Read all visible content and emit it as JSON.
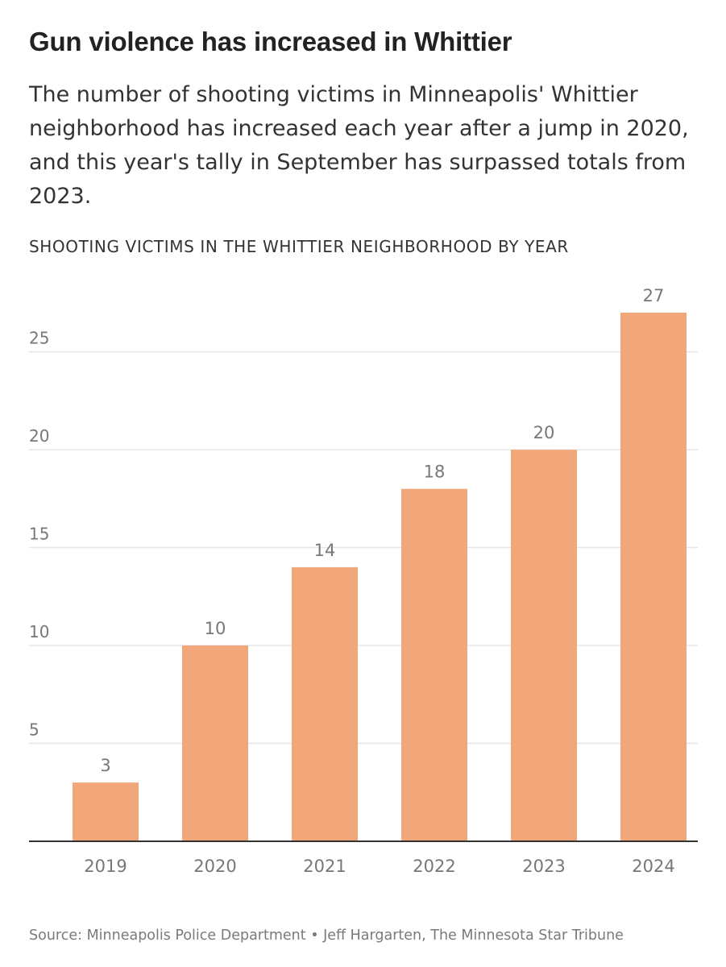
{
  "headline": "Gun violence has increased in Whittier",
  "subhead": "The number of shooting victims in Minneapolis' Whittier neighborhood has increased each year after a jump in 2020, and this year's tally in September has surpassed totals from 2023.",
  "chart_label": "SHOOTING VICTIMS IN THE WHITTIER NEIGHBORHOOD BY YEAR",
  "source": "Source: Minneapolis Police Department • Jeff Hargarten, The Minnesota Star Tribune",
  "colors": {
    "bar": "#f2a77b",
    "grid": "#e6e6e6",
    "axis": "#333333",
    "tick_text": "#777777",
    "value_text": "#777777"
  },
  "chart_data": {
    "type": "bar",
    "title": "SHOOTING VICTIMS IN THE WHITTIER NEIGHBORHOOD BY YEAR",
    "xlabel": "",
    "ylabel": "",
    "categories": [
      "2019",
      "2020",
      "2021",
      "2022",
      "2023",
      "2024"
    ],
    "values": [
      3,
      10,
      14,
      18,
      20,
      27
    ],
    "data_labels": [
      "3",
      "10",
      "14",
      "18",
      "20",
      "27"
    ],
    "yticks": [
      5,
      10,
      15,
      20,
      25
    ],
    "ylim": [
      0,
      27
    ],
    "grid": true,
    "legend": "none"
  }
}
